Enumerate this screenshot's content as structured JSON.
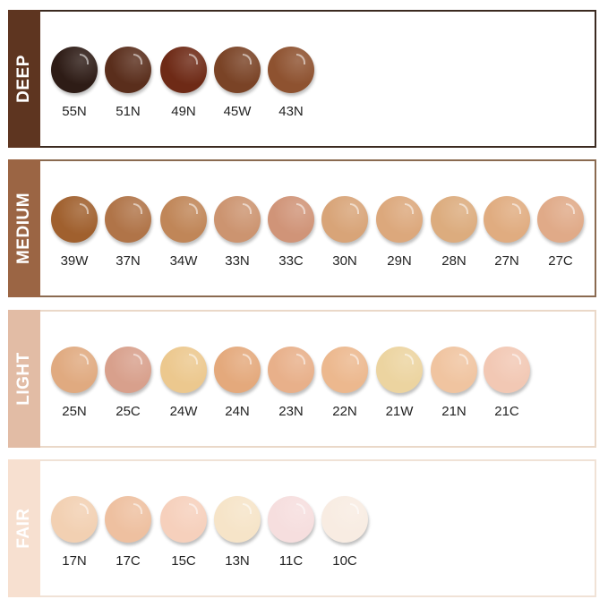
{
  "groups": [
    {
      "name": "DEEP",
      "bar_color": "#5e3520",
      "border_color": "#3b2a20",
      "shades": [
        {
          "code": "55N",
          "color": "#2e1c16"
        },
        {
          "code": "51N",
          "color": "#5a2e1c"
        },
        {
          "code": "49N",
          "color": "#6e2a16"
        },
        {
          "code": "45W",
          "color": "#7a4326"
        },
        {
          "code": "43N",
          "color": "#8e5230"
        }
      ]
    },
    {
      "name": "MEDIUM",
      "bar_color": "#9b6544",
      "border_color": "#8a6a50",
      "shades": [
        {
          "code": "39W",
          "color": "#a0602e"
        },
        {
          "code": "37N",
          "color": "#b07448"
        },
        {
          "code": "34W",
          "color": "#c08658"
        },
        {
          "code": "33N",
          "color": "#cc9470"
        },
        {
          "code": "33C",
          "color": "#d09478"
        },
        {
          "code": "30N",
          "color": "#d8a478"
        },
        {
          "code": "29N",
          "color": "#dca87c"
        },
        {
          "code": "28N",
          "color": "#dcac7e"
        },
        {
          "code": "27N",
          "color": "#e0ac80"
        },
        {
          "code": "27C",
          "color": "#e0aa88"
        }
      ]
    },
    {
      "name": "LIGHT",
      "bar_color": "#e2bca5",
      "border_color": "#ead8c8",
      "shades": [
        {
          "code": "25N",
          "color": "#e0aa80"
        },
        {
          "code": "25C",
          "color": "#d8a08c"
        },
        {
          "code": "24W",
          "color": "#ecc88e"
        },
        {
          "code": "24N",
          "color": "#e4a97c"
        },
        {
          "code": "23N",
          "color": "#e8b08a"
        },
        {
          "code": "22N",
          "color": "#ecb88e"
        },
        {
          "code": "21W",
          "color": "#ecd4a0"
        },
        {
          "code": "21N",
          "color": "#f0c4a0"
        },
        {
          "code": "21C",
          "color": "#f2c8b4"
        }
      ]
    },
    {
      "name": "FAIR",
      "bar_color": "#f7e0d0",
      "border_color": "#f0e2d6",
      "shades": [
        {
          "code": "17N",
          "color": "#f2d0b2"
        },
        {
          "code": "17C",
          "color": "#eec0a0"
        },
        {
          "code": "15C",
          "color": "#f6d0bc"
        },
        {
          "code": "13N",
          "color": "#f6e4c8"
        },
        {
          "code": "11C",
          "color": "#f6dede"
        },
        {
          "code": "10C",
          "color": "#f8ece2"
        }
      ]
    }
  ]
}
